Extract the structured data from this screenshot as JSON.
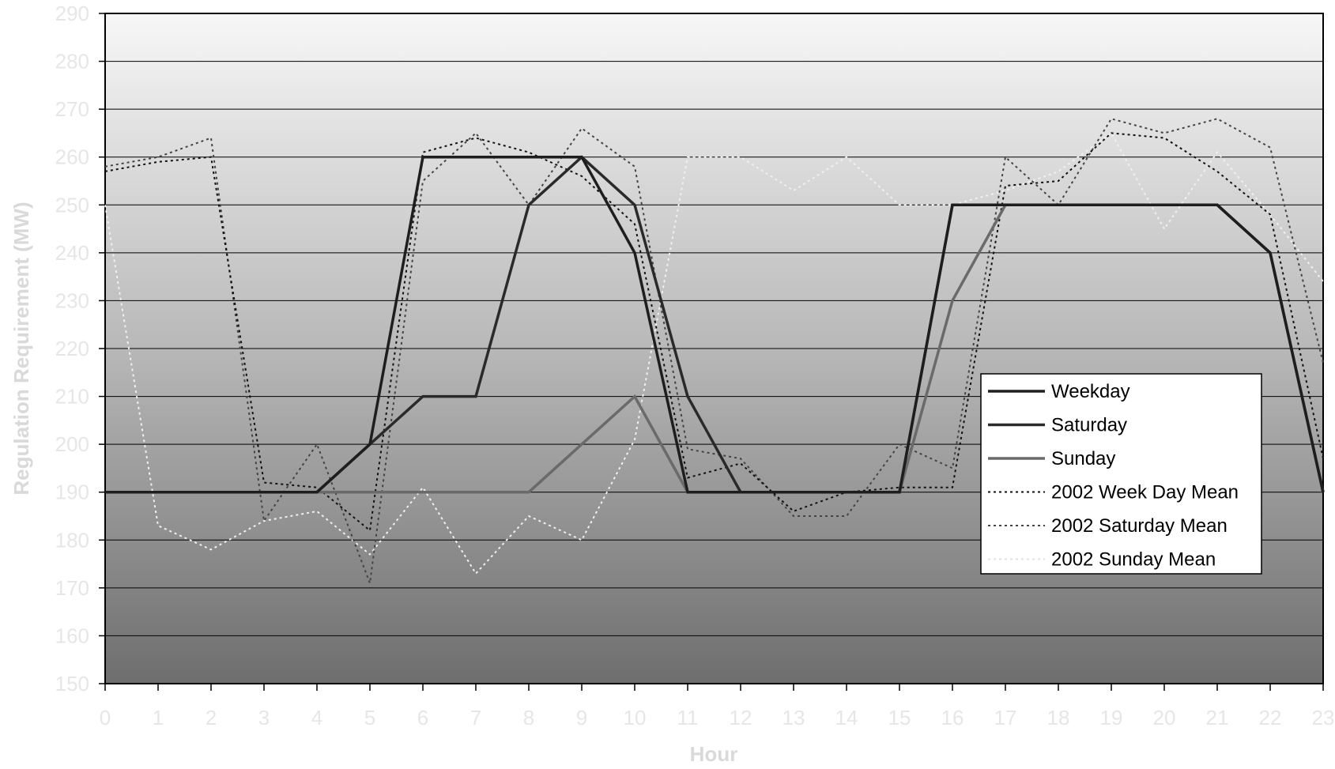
{
  "chart_data": {
    "type": "line",
    "title": "",
    "xlabel": "Hour",
    "ylabel": "Regulation Requirement (MW)",
    "x": [
      0,
      1,
      2,
      3,
      4,
      5,
      6,
      7,
      8,
      9,
      10,
      11,
      12,
      13,
      14,
      15,
      16,
      17,
      18,
      19,
      20,
      21,
      22,
      23
    ],
    "xlim": [
      0,
      23
    ],
    "ylim": [
      150,
      290
    ],
    "y_ticks": [
      150,
      160,
      170,
      180,
      190,
      200,
      210,
      220,
      230,
      240,
      250,
      260,
      270,
      280,
      290
    ],
    "grid": "horizontal",
    "legend_position": "right",
    "series": [
      {
        "name": "Weekday",
        "color": "#1e1e1e",
        "style": "solid",
        "values": [
          190,
          190,
          190,
          190,
          190,
          200,
          260,
          260,
          260,
          260,
          240,
          190,
          190,
          190,
          190,
          190,
          250,
          250,
          250,
          250,
          250,
          250,
          240,
          190
        ]
      },
      {
        "name": "Saturday",
        "color": "#2a2a2a",
        "style": "solid",
        "values": [
          190,
          190,
          190,
          190,
          190,
          200,
          210,
          210,
          250,
          260,
          250,
          210,
          190,
          190,
          190,
          190,
          250,
          250,
          250,
          250,
          250,
          250,
          240,
          190
        ]
      },
      {
        "name": "Sunday",
        "color": "#6a6a6a",
        "style": "solid",
        "values": [
          190,
          190,
          190,
          190,
          190,
          190,
          190,
          190,
          190,
          200,
          210,
          190,
          190,
          190,
          190,
          190,
          230,
          250,
          250,
          250,
          250,
          250,
          240,
          190
        ]
      },
      {
        "name": "2002 Week Day Mean",
        "color": "#111111",
        "style": "dotted",
        "values": [
          257,
          259,
          260,
          192,
          191,
          182,
          261,
          264,
          261,
          256,
          246,
          193,
          196,
          186,
          190,
          191,
          191,
          254,
          255,
          265,
          264,
          257,
          248,
          197
        ]
      },
      {
        "name": "2002 Saturday Mean",
        "color": "#444444",
        "style": "dotted",
        "values": [
          258,
          260,
          264,
          184,
          200,
          171,
          255,
          265,
          250,
          266,
          258,
          199,
          197,
          185,
          185,
          200,
          195,
          260,
          250,
          268,
          265,
          268,
          262,
          217
        ]
      },
      {
        "name": "2002 Sunday Mean",
        "color": "#f0f0f0",
        "style": "dotted",
        "values": [
          250,
          183,
          178,
          184,
          186,
          177,
          191,
          173,
          185,
          180,
          201,
          260,
          260,
          253,
          260,
          250,
          250,
          253,
          257,
          265,
          245,
          261,
          248,
          234
        ]
      }
    ]
  }
}
